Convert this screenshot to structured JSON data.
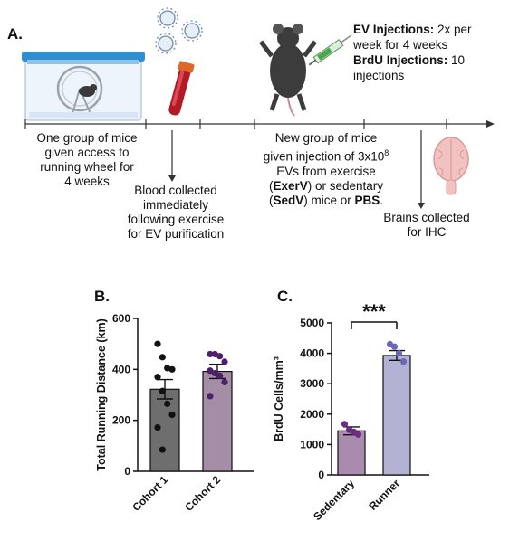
{
  "panel_a": {
    "letter": "A.",
    "injections": {
      "ev_label": "EV Injections:",
      "ev_text": " 2x per week for 4 weeks",
      "brdu_label": "BrdU Injections:",
      "brdu_text": " 10 injections"
    },
    "step1": "One group of mice given access to running wheel for 4 weeks",
    "step2": "Blood collected immediately following exercise for EV purification",
    "step3": {
      "pre": "New group of mice given injection of 3x10",
      "sup": "8",
      "post1": " EVs from exercise (",
      "b1": "ExerV",
      "post2": ") or sedentary (",
      "b2": "SedV",
      "post3": ") mice or ",
      "b3": "PBS",
      "post4": "."
    },
    "step4": "Brains collected for IHC"
  },
  "chart_data": [
    {
      "panel": "B.",
      "type": "bar",
      "ylabel": "Total Running Distance (km)",
      "ylim": [
        0,
        600
      ],
      "yticks": [
        0,
        200,
        400,
        600
      ],
      "categories": [
        "Cohort 1",
        "Cohort 2"
      ],
      "values": [
        322,
        392
      ],
      "errors": [
        38,
        28
      ],
      "colors": [
        "#6e6e6e",
        "#a58da6"
      ],
      "points": [
        [
          500,
          448,
          405,
          400,
          370,
          315,
          265,
          222,
          172,
          85
        ],
        [
          460,
          460,
          452,
          430,
          395,
          385,
          375,
          350,
          295
        ]
      ],
      "point_colors": [
        "#111111",
        "#4e1f6b"
      ]
    },
    {
      "panel": "C.",
      "type": "bar",
      "ylabel": "BrdU Cells/mm³",
      "ylim": [
        0,
        5000
      ],
      "yticks": [
        0,
        1000,
        2000,
        3000,
        4000,
        5000
      ],
      "categories": [
        "Sedentary",
        "Runner"
      ],
      "values": [
        1450,
        3930
      ],
      "errors": [
        130,
        160
      ],
      "colors": [
        "#aa8aae",
        "#b1b2d4"
      ],
      "points": [
        [
          1670,
          1480,
          1420,
          1330
        ],
        [
          4300,
          4220,
          4000,
          3730
        ]
      ],
      "point_colors": [
        "#6c2c80",
        "#6b67b8"
      ],
      "significance": "***"
    }
  ]
}
